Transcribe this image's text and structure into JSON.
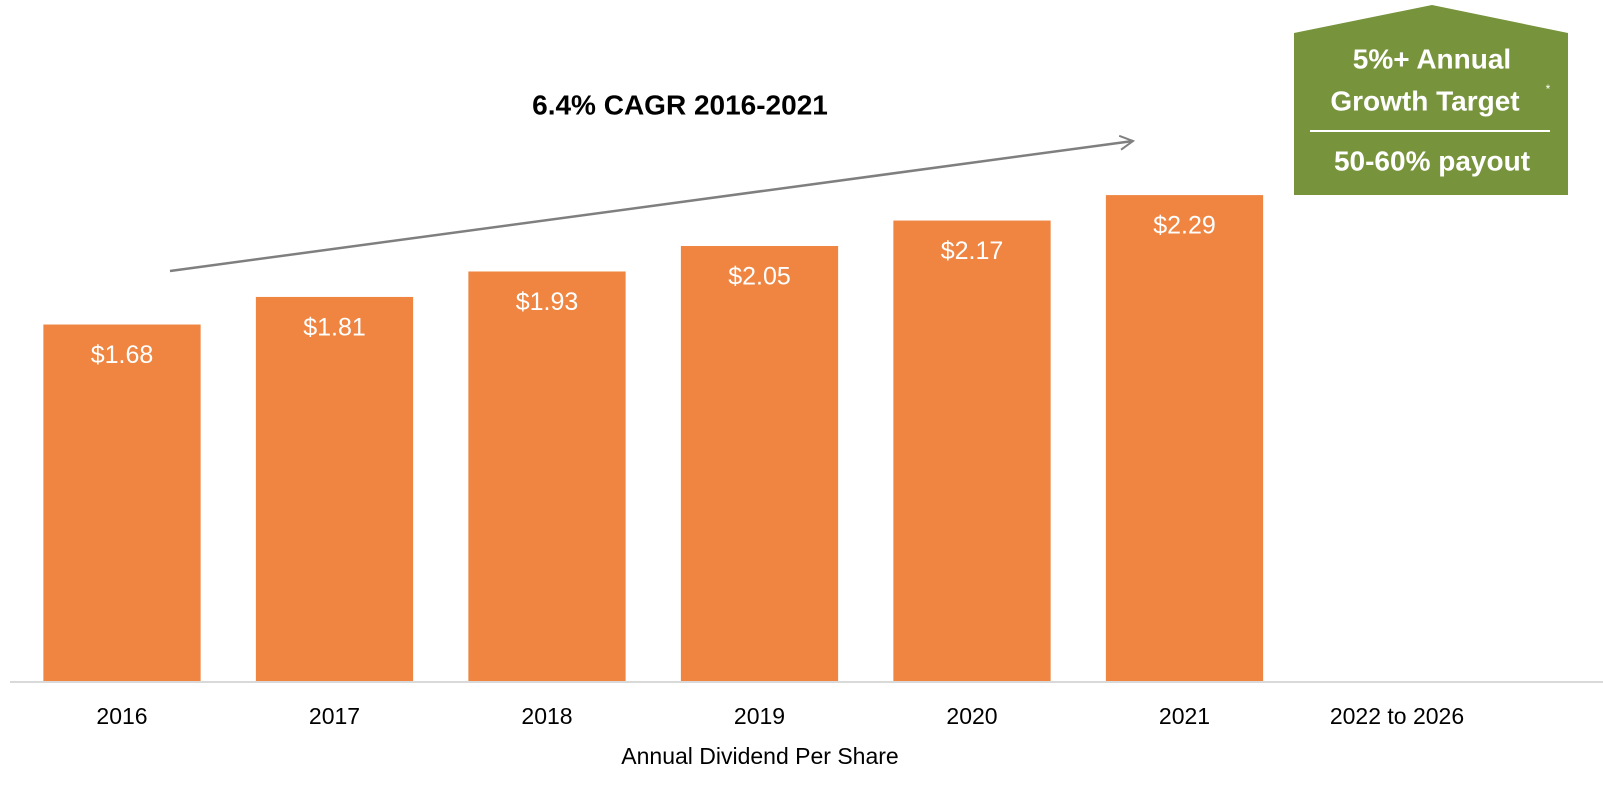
{
  "chart_data": {
    "type": "bar",
    "categories": [
      "2016",
      "2017",
      "2018",
      "2019",
      "2020",
      "2021",
      "2022 to 2026"
    ],
    "values": [
      1.68,
      1.81,
      1.93,
      2.05,
      2.17,
      2.29,
      null
    ],
    "value_labels": [
      "$1.68",
      "$1.81",
      "$1.93",
      "$2.05",
      "$2.17",
      "$2.29",
      null
    ],
    "color": "#ef8541",
    "ylim": [
      0,
      3.2
    ],
    "x_label": "Annual Dividend Per Share",
    "annotation": "6.4% CAGR 2016-2021",
    "target_box": {
      "line1": "5%+ Annual",
      "line2": "Growth Target",
      "footnote_mark": "*",
      "payout": "50-60% payout",
      "color": "#77933c"
    }
  }
}
